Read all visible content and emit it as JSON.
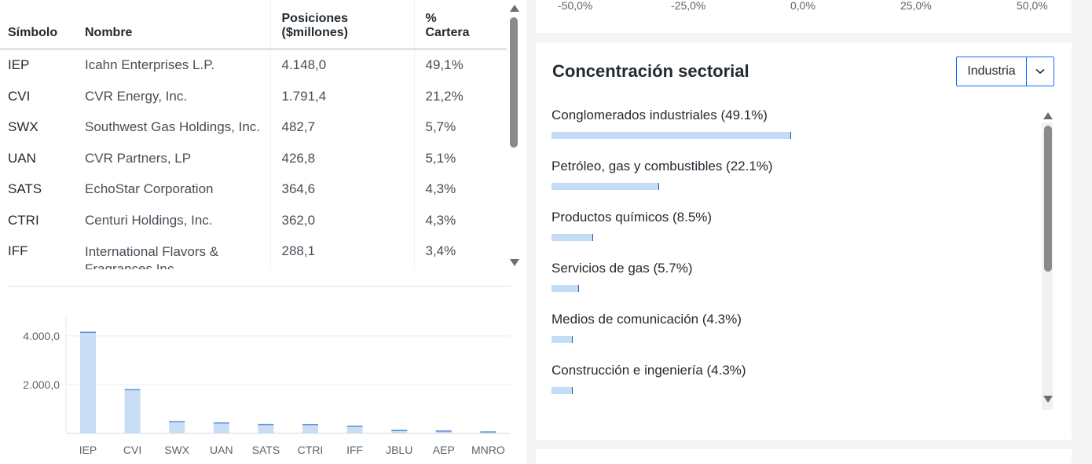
{
  "holdings_table": {
    "headers": {
      "symbol": "Símbolo",
      "name": "Nombre",
      "positions_line1": "Posiciones",
      "positions_line2": "($millones)",
      "portfolio_line1": "%",
      "portfolio_line2": "Cartera"
    },
    "rows": [
      {
        "symbol": "IEP",
        "name": "Icahn Enterprises L.P.",
        "positions": "4.148,0",
        "portfolio": "49,1%"
      },
      {
        "symbol": "CVI",
        "name": "CVR Energy, Inc.",
        "positions": "1.791,4",
        "portfolio": "21,2%"
      },
      {
        "symbol": "SWX",
        "name": "Southwest Gas Holdings, Inc.",
        "positions": "482,7",
        "portfolio": "5,7%"
      },
      {
        "symbol": "UAN",
        "name": "CVR Partners, LP",
        "positions": "426,8",
        "portfolio": "5,1%"
      },
      {
        "symbol": "SATS",
        "name": "EchoStar Corporation",
        "positions": "364,6",
        "portfolio": "4,3%"
      },
      {
        "symbol": "CTRI",
        "name": "Centuri Holdings, Inc.",
        "positions": "362,0",
        "portfolio": "4,3%"
      },
      {
        "symbol": "IFF",
        "name": "International Flavors & Fragrances Inc.",
        "positions": "288,1",
        "portfolio": "3,4%"
      }
    ]
  },
  "chart_data": {
    "type": "bar",
    "categories": [
      "IEP",
      "CVI",
      "SWX",
      "UAN",
      "SATS",
      "CTRI",
      "IFF",
      "JBLU",
      "AEP",
      "MNRO"
    ],
    "values": [
      4148.0,
      1791.4,
      482.7,
      426.8,
      364.6,
      362.0,
      288.1,
      120,
      95,
      60
    ],
    "yticks": [
      2000,
      4000
    ],
    "ytick_labels": [
      "2.000,0",
      "4.000,0"
    ],
    "ylim": [
      0,
      4800
    ],
    "grid": true,
    "color": "#c9ddf5",
    "edge_color": "#5b8fd6"
  },
  "top_axis": {
    "labels": [
      "-50,0%",
      "-25,0%",
      "0,0%",
      "25,0%",
      "50,0%"
    ]
  },
  "sector_concentration": {
    "title": "Concentración sectorial",
    "dropdown_value": "Industria",
    "bar_color": "#c5dcf6",
    "items": [
      {
        "label": "Conglomerados industriales (49.1%)",
        "pct": 49.1
      },
      {
        "label": "Petróleo, gas y combustibles (22.1%)",
        "pct": 22.1
      },
      {
        "label": "Productos químicos (8.5%)",
        "pct": 8.5
      },
      {
        "label": "Servicios de gas (5.7%)",
        "pct": 5.7
      },
      {
        "label": "Medios de comunicación (4.3%)",
        "pct": 4.3
      },
      {
        "label": "Construcción e ingeniería (4.3%)",
        "pct": 4.3
      }
    ]
  },
  "icons": {
    "scroll_up": "triangle-up-icon",
    "scroll_down": "triangle-down-icon",
    "dropdown": "chevron-down-icon"
  }
}
